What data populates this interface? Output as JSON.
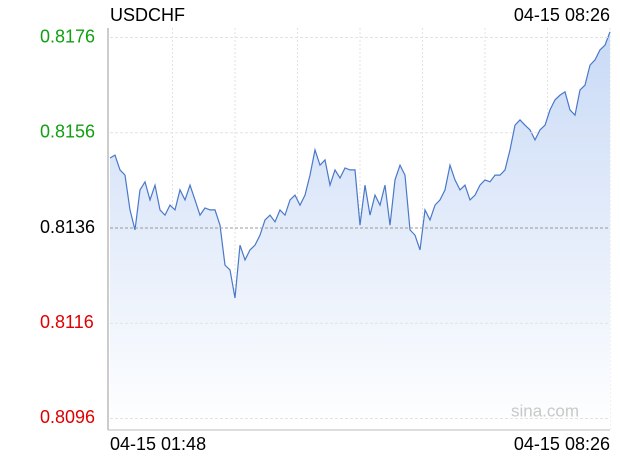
{
  "chart_data": {
    "type": "line",
    "title": "USDCHF",
    "timestamp": "04-15 08:26",
    "watermark": "sina.com",
    "categories": [
      "04-15 01:48",
      null,
      null,
      null,
      null,
      null,
      null,
      null,
      null,
      null,
      null,
      null,
      null,
      null,
      null,
      null,
      null,
      null,
      null,
      null,
      null,
      null,
      null,
      null,
      null,
      null,
      null,
      null,
      null,
      null,
      null,
      null,
      null,
      null,
      null,
      null,
      null,
      null,
      null,
      null,
      null,
      null,
      null,
      null,
      null,
      null,
      null,
      null,
      null,
      null,
      null,
      null,
      null,
      null,
      null,
      null,
      null,
      null,
      null,
      null,
      null,
      null,
      null,
      null,
      null,
      null,
      null,
      null,
      null,
      null,
      null,
      null,
      null,
      null,
      null,
      null,
      null,
      null,
      null,
      null,
      null,
      null,
      null,
      null,
      null,
      null,
      null,
      null,
      null,
      null,
      null,
      null,
      null,
      null,
      null,
      null,
      null,
      null,
      null,
      null,
      "04-15 08:26"
    ],
    "values": [
      0.81507,
      0.81513,
      0.81482,
      0.81471,
      0.81398,
      0.81356,
      0.8144,
      0.81457,
      0.81419,
      0.8145,
      0.81398,
      0.81387,
      0.81408,
      0.81398,
      0.8144,
      0.81419,
      0.8145,
      0.81419,
      0.81387,
      0.81402,
      0.81398,
      0.81398,
      0.81366,
      0.81282,
      0.81272,
      0.81213,
      0.81324,
      0.81293,
      0.81314,
      0.81324,
      0.81345,
      0.81377,
      0.81387,
      0.81373,
      0.81398,
      0.81387,
      0.81419,
      0.81429,
      0.81408,
      0.81429,
      0.81471,
      0.81524,
      0.81492,
      0.81503,
      0.8145,
      0.81482,
      0.81465,
      0.81486,
      0.81482,
      0.81482,
      0.81366,
      0.8145,
      0.81387,
      0.81429,
      0.81408,
      0.8145,
      0.81366,
      0.81461,
      0.81492,
      0.81471,
      0.81356,
      0.81345,
      0.81314,
      0.81398,
      0.81377,
      0.81408,
      0.81419,
      0.8144,
      0.81492,
      0.81461,
      0.8144,
      0.8145,
      0.81419,
      0.81429,
      0.8145,
      0.81461,
      0.81457,
      0.81471,
      0.81471,
      0.81482,
      0.81524,
      0.81576,
      0.81587,
      0.81576,
      0.81566,
      0.81545,
      0.81566,
      0.81576,
      0.81608,
      0.81629,
      0.81639,
      0.81646,
      0.81608,
      0.81597,
      0.8165,
      0.8166,
      0.81702,
      0.81713,
      0.81734,
      0.81744,
      0.81772
    ],
    "color": "#4a78c8",
    "ylim": [
      0.8094,
      0.8178
    ],
    "yticks": [
      0.8176,
      0.8156,
      0.8136,
      0.8116,
      0.8096
    ],
    "ytick_colors": [
      "#10a010",
      "#10a010",
      "#000000",
      "#e00000",
      "#e00000"
    ],
    "grid": true
  }
}
